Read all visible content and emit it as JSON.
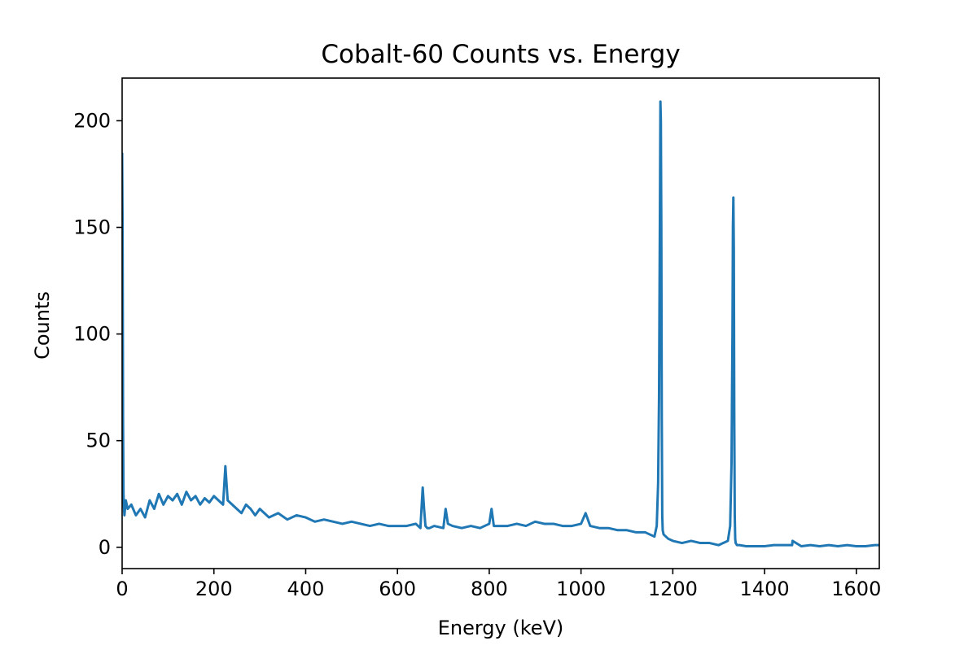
{
  "chart_data": {
    "type": "line",
    "title": "Cobalt-60 Counts vs. Energy",
    "xlabel": "Energy (keV)",
    "ylabel": "Counts",
    "xlim": [
      0,
      1650
    ],
    "ylim": [
      -10,
      220
    ],
    "xticks": [
      0,
      200,
      400,
      600,
      800,
      1000,
      1200,
      1400,
      1600
    ],
    "yticks": [
      0,
      50,
      100,
      150,
      200
    ],
    "grid": false,
    "legend": "none",
    "series": [
      {
        "color": "#1f77b4",
        "x": [
          0,
          1,
          2,
          3,
          4,
          5,
          8,
          12,
          20,
          30,
          40,
          50,
          60,
          70,
          80,
          90,
          100,
          110,
          120,
          130,
          140,
          150,
          160,
          170,
          180,
          190,
          200,
          210,
          220,
          225,
          230,
          240,
          250,
          260,
          270,
          280,
          290,
          300,
          320,
          340,
          360,
          380,
          400,
          420,
          440,
          460,
          480,
          500,
          520,
          540,
          560,
          580,
          600,
          620,
          640,
          650,
          655,
          658,
          661,
          665,
          670,
          680,
          700,
          705,
          710,
          720,
          740,
          760,
          780,
          800,
          805,
          810,
          820,
          840,
          860,
          880,
          900,
          920,
          940,
          960,
          980,
          1000,
          1010,
          1020,
          1040,
          1060,
          1080,
          1100,
          1120,
          1140,
          1150,
          1160,
          1165,
          1168,
          1170,
          1172,
          1173,
          1174,
          1175,
          1176,
          1177,
          1178,
          1180,
          1185,
          1190,
          1200,
          1220,
          1240,
          1260,
          1280,
          1300,
          1310,
          1320,
          1325,
          1328,
          1330,
          1331,
          1332,
          1333,
          1334,
          1335,
          1336,
          1337,
          1340,
          1345,
          1360,
          1400,
          1420,
          1440,
          1460,
          1461,
          1480,
          1500,
          1520,
          1540,
          1560,
          1580,
          1600,
          1620,
          1640,
          1650
        ],
        "y": [
          185,
          150,
          60,
          25,
          18,
          15,
          22,
          18,
          20,
          15,
          18,
          14,
          22,
          18,
          25,
          20,
          24,
          22,
          25,
          20,
          26,
          22,
          24,
          20,
          23,
          21,
          24,
          22,
          20,
          38,
          22,
          20,
          18,
          16,
          20,
          18,
          15,
          18,
          14,
          16,
          13,
          15,
          14,
          12,
          13,
          12,
          11,
          12,
          11,
          10,
          11,
          10,
          10,
          10,
          11,
          9,
          28,
          18,
          10,
          9,
          9,
          10,
          9,
          18,
          11,
          10,
          9,
          10,
          9,
          11,
          18,
          10,
          10,
          10,
          11,
          10,
          12,
          11,
          11,
          10,
          10,
          11,
          16,
          10,
          9,
          9,
          8,
          8,
          7,
          7,
          6,
          5,
          10,
          30,
          70,
          160,
          209,
          200,
          150,
          60,
          15,
          8,
          6,
          5,
          4,
          3,
          2,
          3,
          2,
          2,
          1,
          2,
          3,
          10,
          40,
          100,
          150,
          164,
          140,
          60,
          15,
          4,
          2,
          1,
          1,
          0.5,
          0.5,
          1,
          1,
          1,
          3,
          0.5,
          1,
          0.5,
          1,
          0.5,
          1,
          0.5,
          0.5,
          1,
          1
        ]
      }
    ]
  }
}
